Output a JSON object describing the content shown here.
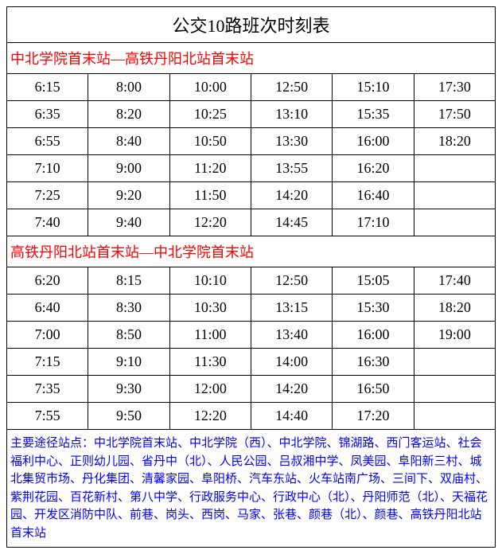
{
  "title": "公交10路班次时刻表",
  "colors": {
    "text": "#000000",
    "direction": "#ff0000",
    "stops": "#0000ff",
    "border": "#000000",
    "background": "#ffffff"
  },
  "layout": {
    "columns": 6,
    "title_fontsize": 22,
    "direction_fontsize": 18,
    "time_fontsize": 18,
    "stops_fontsize": 15
  },
  "directions": [
    {
      "label": "中北学院首末站—高铁丹阳北站首末站",
      "rows": [
        [
          "6:15",
          "8:00",
          "10:00",
          "12:50",
          "15:10",
          "17:30"
        ],
        [
          "6:35",
          "8:20",
          "10:25",
          "13:10",
          "15:35",
          "17:50"
        ],
        [
          "6:55",
          "8:40",
          "10:50",
          "13:30",
          "16:00",
          "18:20"
        ],
        [
          "7:10",
          "9:00",
          "11:20",
          "13:55",
          "16:20",
          ""
        ],
        [
          "7:25",
          "9:20",
          "11:50",
          "14:20",
          "16:40",
          ""
        ],
        [
          "7:40",
          "9:40",
          "12:20",
          "14:45",
          "17:10",
          ""
        ]
      ]
    },
    {
      "label": "高铁丹阳北站首末站—中北学院首末站",
      "rows": [
        [
          "6:20",
          "8:15",
          "10:10",
          "12:50",
          "15:05",
          "17:40"
        ],
        [
          "6:40",
          "8:30",
          "10:30",
          "13:15",
          "15:30",
          "18:20"
        ],
        [
          "7:00",
          "8:50",
          "11:00",
          "13:40",
          "16:00",
          "19:00"
        ],
        [
          "7:15",
          "9:10",
          "11:30",
          "14:00",
          "16:30",
          ""
        ],
        [
          "7:35",
          "9:30",
          "12:00",
          "14:20",
          "16:50",
          ""
        ],
        [
          "7:55",
          "9:50",
          "12:20",
          "14:40",
          "17:20",
          ""
        ]
      ]
    }
  ],
  "stops_text": "主要途径站点：中北学院首末站、中北学院（西）、中北学院、锦湖路、西门客运站、社会福利中心、正则幼儿园、省丹中（北）、人民公园、吕叔湘中学、凤美园、阜阳新三村、城北集贸市场、丹化集团、清馨家园、阜阳桥、汽车东站、火车站南广场、三间下、双庙村、紫荆花园、百花新村、第八中学、行政服务中心、行政中心（北）、丹阳师范（北）、天福花园、开发区消防中队、前巷、岗头、西岗、马家、张巷、颜巷（北）、颜巷、高铁丹阳北站首末站"
}
